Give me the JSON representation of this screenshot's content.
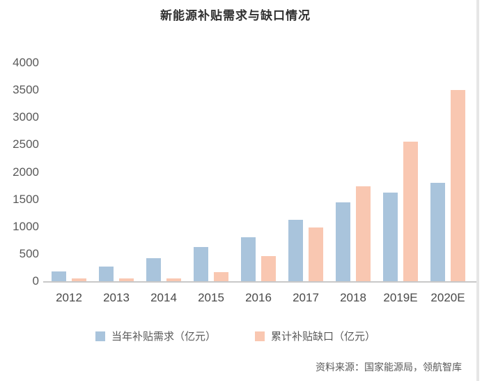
{
  "page": {
    "title": "新能源补贴需求与缺口情况",
    "source": "资料来源：国家能源局，领航智库"
  },
  "chart_data": {
    "type": "bar",
    "title": "新能源补贴需求与缺口情况",
    "categories": [
      "2012",
      "2013",
      "2014",
      "2015",
      "2016",
      "2017",
      "2018",
      "2019E",
      "2020E"
    ],
    "series": [
      {
        "name": "当年补贴需求（亿元）",
        "color": "#a9c4dc",
        "values": [
          180,
          270,
          420,
          620,
          800,
          1120,
          1450,
          1620,
          1800
        ]
      },
      {
        "name": "累计补贴缺口（亿元）",
        "color": "#f9c7b1",
        "values": [
          50,
          50,
          50,
          170,
          460,
          990,
          1740,
          2550,
          3500
        ]
      }
    ],
    "xlabel": "",
    "ylabel": "",
    "ylim": [
      0,
      4000
    ],
    "yticks": [
      0,
      500,
      1000,
      1500,
      2000,
      2500,
      3000,
      3500,
      4000
    ],
    "grid": false,
    "legend_position": "bottom",
    "colors": {
      "axis_line": "#c8c8c8",
      "tick_text": "#595959",
      "title_text": "#303030"
    }
  }
}
